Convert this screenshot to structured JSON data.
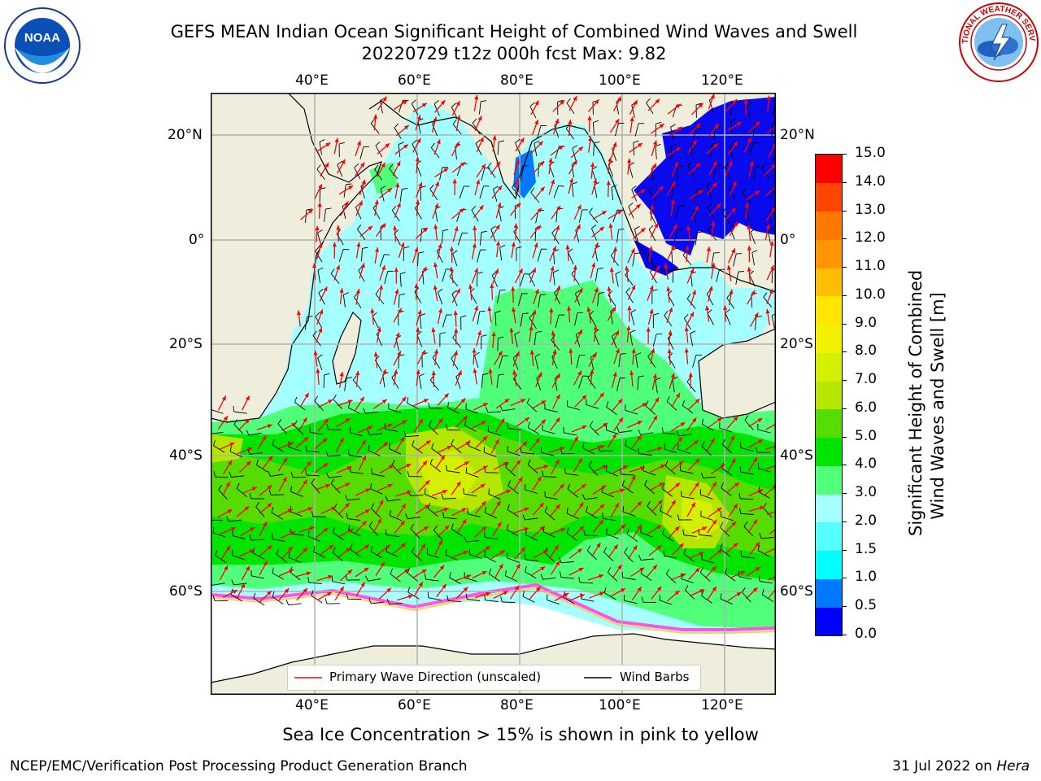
{
  "header": {
    "title_line1": "GEFS MEAN Indian Ocean Significant Height of Combined Wind Waves and Swell",
    "title_line2": "20220729 t12z 000h fcst   Max: 9.82"
  },
  "logos": {
    "left": "NOAA",
    "right": "NATIONAL WEATHER SERVICE"
  },
  "map": {
    "lon_labels": [
      "40°E",
      "60°E",
      "80°E",
      "100°E",
      "120°E"
    ],
    "lat_labels": [
      "20°N",
      "0°",
      "20°S",
      "40°S",
      "60°S"
    ],
    "colors": {
      "ocean_calm": "#a6ffff",
      "land": "#efeedc",
      "ice": "#ffffff",
      "grid": "#b0b0b0"
    }
  },
  "legend": {
    "wave_label": "Primary Wave Direction (unscaled)",
    "wind_label": "Wind Barbs",
    "wave_color": "#ff0000",
    "wind_color": "#000000"
  },
  "colorbar": {
    "label_line1": "Significant Height of Combined",
    "label_line2": "Wind Waves and Swell [m]",
    "ticks": [
      "0.0",
      "0.5",
      "1.0",
      "1.5",
      "2.0",
      "3.0",
      "4.0",
      "5.0",
      "6.0",
      "7.0",
      "8.0",
      "9.0",
      "10.0",
      "11.0",
      "12.0",
      "13.0",
      "14.0",
      "15.0"
    ],
    "colors": [
      "#0000ff",
      "#0078ff",
      "#00ffff",
      "#55ffff",
      "#a6ffff",
      "#50ff7a",
      "#00e400",
      "#55dc00",
      "#b4e600",
      "#d2f000",
      "#f0f000",
      "#ffe600",
      "#ffbe00",
      "#ff9600",
      "#ff7800",
      "#ff4600",
      "#ff0000"
    ]
  },
  "footer": {
    "note": "Sea Ice Concentration > 15% is shown in pink to yellow",
    "left": "NCEP/EMC/Verification Post Processing Product Generation Branch",
    "right_date": "31 Jul 2022 on ",
    "right_host": "Hera"
  }
}
